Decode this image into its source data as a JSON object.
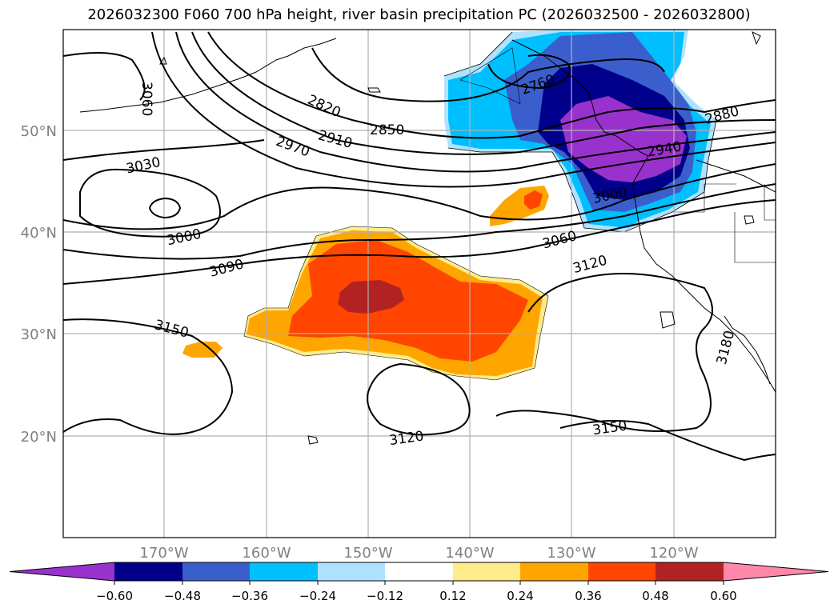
{
  "title": "2026032300 F060 700 hPa height, river basin precipitation PC (2026032500 - 2026032800)",
  "axes": {
    "lat_labels": [
      "50°N",
      "40°N",
      "30°N",
      "20°N"
    ],
    "lon_labels": [
      "170°W",
      "160°W",
      "150°W",
      "140°W",
      "130°W",
      "120°W"
    ]
  },
  "contour_labels": [
    "3060",
    "2820",
    "2760",
    "2850",
    "2910",
    "2970",
    "3030",
    "2880",
    "2940",
    "3000",
    "3000",
    "3090",
    "3060",
    "3120",
    "3150",
    "3180",
    "3120",
    "3150"
  ],
  "colorbar": {
    "ticks": [
      "−0.60",
      "−0.48",
      "−0.36",
      "−0.24",
      "−0.12",
      "0.12",
      "0.24",
      "0.36",
      "0.48",
      "0.60"
    ],
    "colors": [
      "#9932cc",
      "#00008b",
      "#3a5fcd",
      "#00bfff",
      "#b0e2ff",
      "#ffffff",
      "#ffec8b",
      "#ffa500",
      "#ff4500",
      "#b22222",
      "#ff88aa"
    ]
  },
  "colors": {
    "frame": "#000000",
    "grid": "#b0b0b0",
    "label_gray": "#808080"
  }
}
